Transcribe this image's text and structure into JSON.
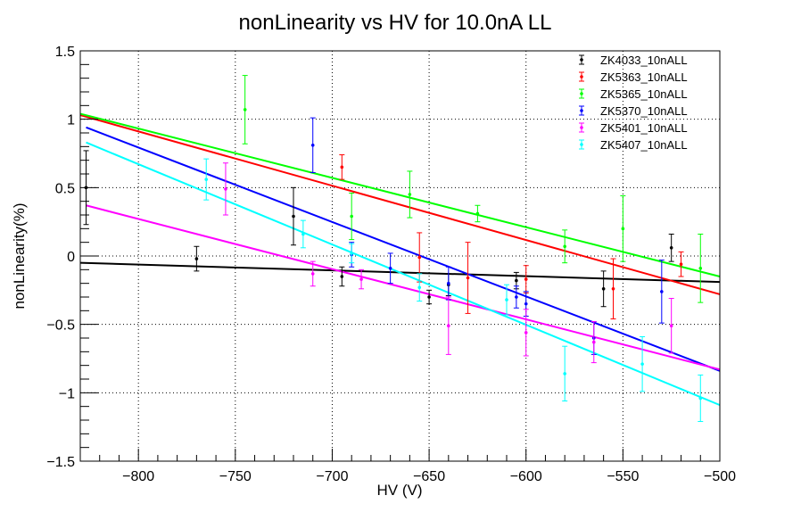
{
  "chart_data": {
    "type": "scatter",
    "title": "nonLinearity vs HV for 10.0nA LL",
    "xlabel": "HV (V)",
    "ylabel": "nonLinearity(%)",
    "xlim": [
      -830,
      -500
    ],
    "ylim": [
      -1.5,
      1.5
    ],
    "grid": true,
    "legend_position": "top-right",
    "x_ticks": [
      -800,
      -750,
      -700,
      -650,
      -600,
      -550,
      -500
    ],
    "x_tick_labels": [
      "−800",
      "−750",
      "−700",
      "−650",
      "−600",
      "−550",
      "−500"
    ],
    "y_ticks": [
      -1.5,
      -1,
      -0.5,
      0,
      0.5,
      1,
      1.5
    ],
    "y_tick_labels": [
      "−1.5",
      "−1",
      "−0.5",
      "0",
      "0.5",
      "1",
      "1.5"
    ],
    "series": [
      {
        "name": "ZK4033_10nALL",
        "color": "#000000",
        "fit": [
          [
            -830,
            -0.05
          ],
          [
            -500,
            -0.19
          ]
        ],
        "points": [
          {
            "x": -827,
            "y": 0.5,
            "err": 0.27
          },
          {
            "x": -770,
            "y": -0.02,
            "err": 0.09
          },
          {
            "x": -720,
            "y": 0.29,
            "err": 0.21
          },
          {
            "x": -695,
            "y": -0.15,
            "err": 0.07
          },
          {
            "x": -650,
            "y": -0.3,
            "err": 0.05
          },
          {
            "x": -640,
            "y": -0.21,
            "err": 0.08
          },
          {
            "x": -605,
            "y": -0.18,
            "err": 0.06
          },
          {
            "x": -560,
            "y": -0.24,
            "err": 0.13
          },
          {
            "x": -525,
            "y": 0.06,
            "err": 0.1
          }
        ]
      },
      {
        "name": "ZK5363_10nALL",
        "color": "#ff0000",
        "fit": [
          [
            -830,
            1.03
          ],
          [
            -500,
            -0.28
          ]
        ],
        "points": [
          {
            "x": -695,
            "y": 0.65,
            "err": 0.09
          },
          {
            "x": -655,
            "y": -0.01,
            "err": 0.18
          },
          {
            "x": -630,
            "y": -0.16,
            "err": 0.26
          },
          {
            "x": -600,
            "y": -0.17,
            "err": 0.1
          },
          {
            "x": -555,
            "y": -0.24,
            "err": 0.22
          },
          {
            "x": -520,
            "y": -0.06,
            "err": 0.09
          }
        ]
      },
      {
        "name": "ZK5365_10nALL",
        "color": "#00ff00",
        "fit": [
          [
            -830,
            1.04
          ],
          [
            -500,
            -0.15
          ]
        ],
        "points": [
          {
            "x": -745,
            "y": 1.07,
            "err": 0.25
          },
          {
            "x": -690,
            "y": 0.29,
            "err": 0.17
          },
          {
            "x": -660,
            "y": 0.45,
            "err": 0.17
          },
          {
            "x": -625,
            "y": 0.31,
            "err": 0.06
          },
          {
            "x": -580,
            "y": 0.07,
            "err": 0.12
          },
          {
            "x": -550,
            "y": 0.2,
            "err": 0.24
          },
          {
            "x": -510,
            "y": -0.09,
            "err": 0.25
          }
        ]
      },
      {
        "name": "ZK5370_10nALL",
        "color": "#0000ff",
        "fit": [
          [
            -827,
            0.94
          ],
          [
            -500,
            -0.84
          ]
        ],
        "points": [
          {
            "x": -710,
            "y": 0.81,
            "err": 0.2
          },
          {
            "x": -690,
            "y": 0.01,
            "err": 0.09
          },
          {
            "x": -670,
            "y": -0.09,
            "err": 0.11
          },
          {
            "x": -640,
            "y": -0.2,
            "err": 0.12
          },
          {
            "x": -605,
            "y": -0.3,
            "err": 0.08
          },
          {
            "x": -600,
            "y": -0.35,
            "err": 0.09
          },
          {
            "x": -565,
            "y": -0.6,
            "err": 0.12
          },
          {
            "x": -530,
            "y": -0.26,
            "err": 0.23
          }
        ]
      },
      {
        "name": "ZK5401_10nALL",
        "color": "#ff00ff",
        "fit": [
          [
            -827,
            0.37
          ],
          [
            -500,
            -0.83
          ]
        ],
        "points": [
          {
            "x": -755,
            "y": 0.49,
            "err": 0.19
          },
          {
            "x": -710,
            "y": -0.13,
            "err": 0.09
          },
          {
            "x": -685,
            "y": -0.17,
            "err": 0.07
          },
          {
            "x": -640,
            "y": -0.51,
            "err": 0.21
          },
          {
            "x": -600,
            "y": -0.56,
            "err": 0.17
          },
          {
            "x": -565,
            "y": -0.63,
            "err": 0.15
          },
          {
            "x": -525,
            "y": -0.51,
            "err": 0.2
          }
        ]
      },
      {
        "name": "ZK5407_10nALL",
        "color": "#00ffff",
        "fit": [
          [
            -827,
            0.83
          ],
          [
            -500,
            -1.09
          ]
        ],
        "points": [
          {
            "x": -765,
            "y": 0.56,
            "err": 0.15
          },
          {
            "x": -715,
            "y": 0.16,
            "err": 0.1
          },
          {
            "x": -690,
            "y": 0.02,
            "err": 0.07
          },
          {
            "x": -655,
            "y": -0.23,
            "err": 0.1
          },
          {
            "x": -610,
            "y": -0.32,
            "err": 0.11
          },
          {
            "x": -580,
            "y": -0.86,
            "err": 0.2
          },
          {
            "x": -540,
            "y": -0.79,
            "err": 0.2
          },
          {
            "x": -510,
            "y": -1.04,
            "err": 0.17
          }
        ]
      }
    ]
  }
}
